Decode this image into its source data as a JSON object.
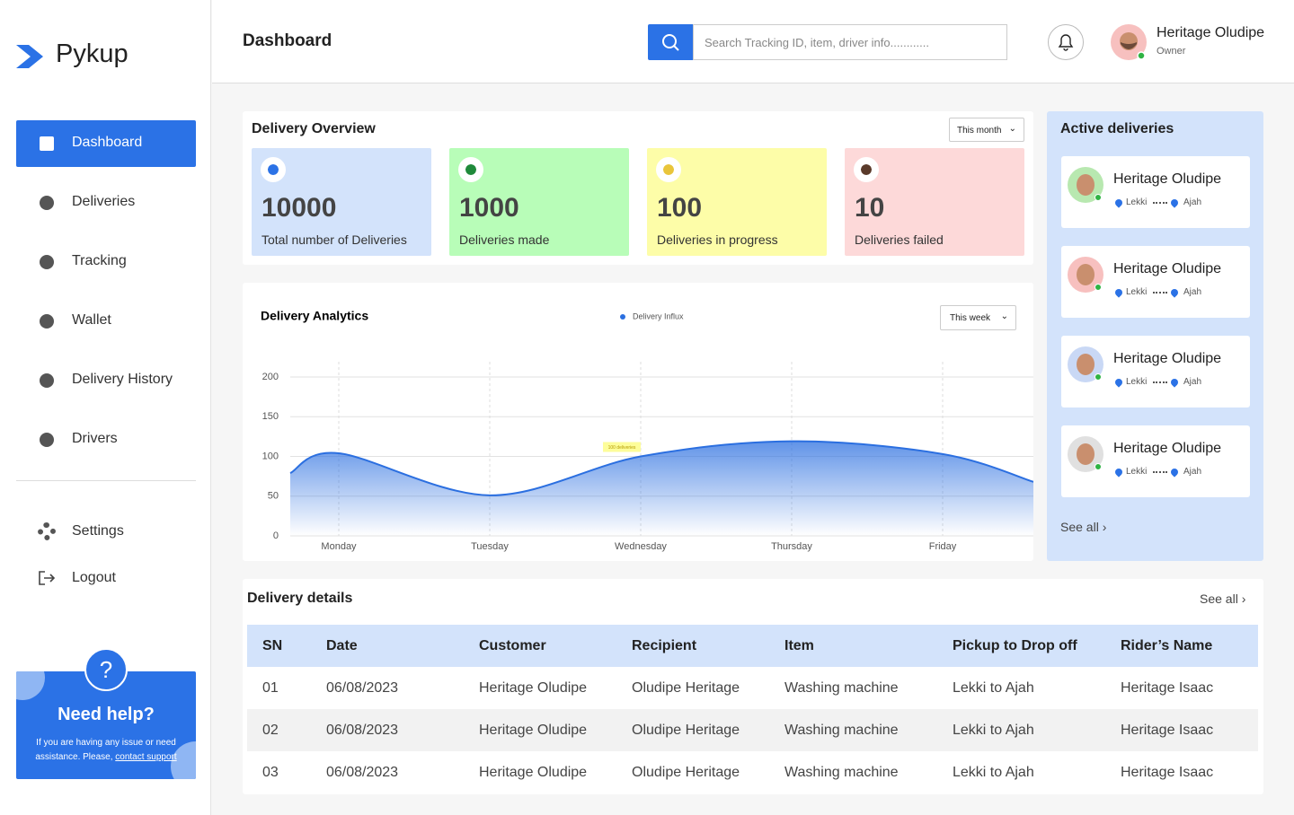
{
  "sidebar": {
    "brand": "Pykup",
    "nav": [
      "Dashboard",
      "Deliveries",
      "Tracking",
      "Wallet",
      "Delivery History",
      "Drivers"
    ],
    "settings": "Settings",
    "logout": "Logout",
    "help": {
      "title": "Need help?",
      "text": "If you are having any issue or need assistance. Please,",
      "link": "contact support"
    }
  },
  "header": {
    "title": "Dashboard",
    "search_placeholder": "Search Tracking ID, item, driver info............",
    "user_name": "Heritage Oludipe",
    "user_role": "Owner"
  },
  "overview": {
    "title": "Delivery Overview",
    "period": "This month",
    "cards": [
      {
        "value": 10000,
        "label": "Total number of Deliveries"
      },
      {
        "value": 1000,
        "label": "Deliveries made"
      },
      {
        "value": 100,
        "label": "Deliveries in progress"
      },
      {
        "value": 10,
        "label": "Deliveries failed"
      }
    ]
  },
  "chart_data": {
    "type": "area",
    "title": "Delivery Analytics",
    "period": "This week",
    "categories": [
      null,
      "Monday",
      "Tuesday",
      "Wednesday",
      "Thursday",
      "Friday",
      null
    ],
    "series": [
      {
        "name": "Delivery Influx",
        "color": "#2b6fe0",
        "values": [
          79,
          104,
          51,
          100,
          119,
          103,
          68
        ]
      }
    ],
    "ylim": [
      0,
      200
    ],
    "yticks": [
      0,
      50,
      100,
      150,
      200
    ],
    "grid": true,
    "annotation": "100 deliveries"
  },
  "active": {
    "title": "Active deliveries",
    "items": [
      {
        "name": "Heritage Oludipe",
        "from": "Lekki",
        "to": "Ajah"
      },
      {
        "name": "Heritage Oludipe",
        "from": "Lekki",
        "to": "Ajah"
      },
      {
        "name": "Heritage Oludipe",
        "from": "Lekki",
        "to": "Ajah"
      },
      {
        "name": "Heritage Oludipe",
        "from": "Lekki",
        "to": "Ajah"
      }
    ],
    "see_all": "See all"
  },
  "details": {
    "title": "Delivery details",
    "see_all": "See all",
    "columns": [
      "SN",
      "Date",
      "Customer",
      "Recipient",
      "Item",
      "Pickup to Drop off",
      "Rider’s Name"
    ],
    "rows": [
      [
        "01",
        "06/08/2023",
        "Heritage Oludipe",
        "Oludipe Heritage",
        "Washing machine",
        "Lekki to Ajah",
        "Heritage Isaac"
      ],
      [
        "02",
        "06/08/2023",
        "Heritage Oludipe",
        "Oludipe Heritage",
        "Washing machine",
        "Lekki to Ajah",
        "Heritage Isaac"
      ],
      [
        "03",
        "06/08/2023",
        "Heritage Oludipe",
        "Oludipe Heritage",
        "Washing machine",
        "Lekki to Ajah",
        "Heritage Isaac"
      ]
    ]
  }
}
